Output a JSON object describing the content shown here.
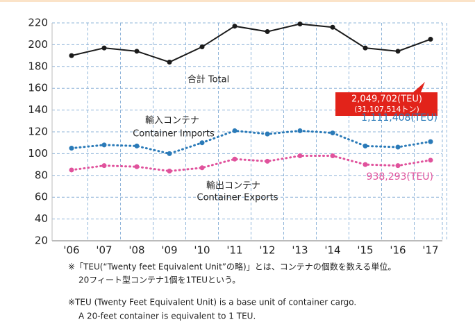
{
  "chart_data": {
    "type": "line",
    "categories": [
      "'06",
      "'07",
      "'08",
      "'09",
      "'10",
      "'11",
      "'12",
      "'13",
      "'14",
      "'15",
      "'16",
      "'17"
    ],
    "series": [
      {
        "labels": [
          "合計 Total"
        ],
        "color": "#1a1a1a",
        "style": "solid",
        "total": [
          "2,049,702(TEU)",
          "(31,107,514トン)"
        ],
        "values": [
          190,
          197,
          194,
          184,
          198,
          217,
          212,
          219,
          216,
          197,
          194,
          205
        ]
      },
      {
        "labels": [
          "輸入コンテナ",
          "Container Imports"
        ],
        "color": "#2a7ab8",
        "style": "dotted",
        "total": [
          "1,111,408(TEU)"
        ],
        "values": [
          105,
          108,
          107,
          100,
          110,
          121,
          118,
          121,
          119,
          107,
          106,
          111
        ]
      },
      {
        "labels": [
          "輸出コンテナ",
          "Container Exports"
        ],
        "color": "#e0529c",
        "style": "dotted",
        "total": [
          "938,293(TEU)"
        ],
        "values": [
          85,
          89,
          88,
          84,
          87,
          95,
          93,
          98,
          98,
          90,
          89,
          94
        ]
      }
    ],
    "ylim": [
      20,
      220
    ],
    "yticks": [
      20,
      40,
      60,
      80,
      100,
      120,
      140,
      160,
      180,
      200,
      220
    ],
    "grid": true,
    "notes": [
      "※「TEU(“Twenty feet Equivalent Unit”の略)」とは、コンテナの個数を数える単位。",
      "20フィート型コンテナ1個を1TEUという。",
      "※TEU (Twenty Feet Equivalent Unit) is a base unit of container cargo.",
      "A 20-feet container is equivalent to 1 TEU."
    ]
  }
}
